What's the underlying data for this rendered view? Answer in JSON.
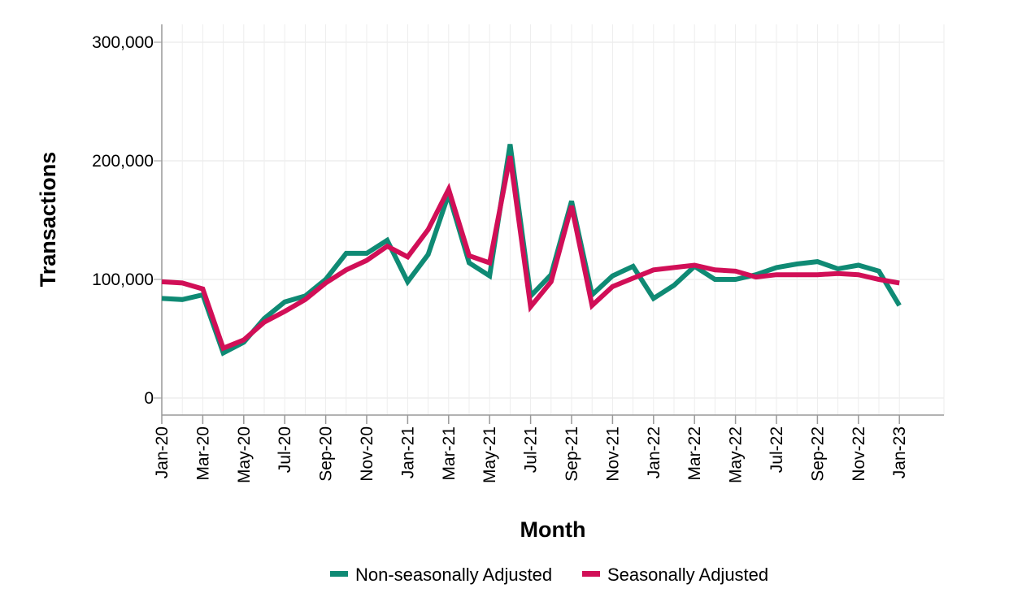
{
  "chart_data": {
    "type": "line",
    "title": "",
    "xlabel": "Month",
    "ylabel": "Transactions",
    "ylim": [
      0,
      300000
    ],
    "yticks": [
      0,
      100000,
      200000,
      300000
    ],
    "ytick_labels": [
      "0",
      "100,000",
      "200,000",
      "300,000"
    ],
    "grid": true,
    "legend_position": "bottom-center",
    "x": [
      "Jan-20",
      "Feb-20",
      "Mar-20",
      "Apr-20",
      "May-20",
      "Jun-20",
      "Jul-20",
      "Aug-20",
      "Sep-20",
      "Oct-20",
      "Nov-20",
      "Dec-20",
      "Jan-21",
      "Feb-21",
      "Mar-21",
      "Apr-21",
      "May-21",
      "Jun-21",
      "Jul-21",
      "Aug-21",
      "Sep-21",
      "Oct-21",
      "Nov-21",
      "Dec-21",
      "Jan-22",
      "Feb-22",
      "Mar-22",
      "Apr-22",
      "May-22",
      "Jun-22",
      "Jul-22",
      "Aug-22",
      "Sep-22",
      "Oct-22",
      "Nov-22",
      "Dec-22",
      "Jan-23"
    ],
    "xtick_labels": [
      "Jan-20",
      "Mar-20",
      "May-20",
      "Jul-20",
      "Sep-20",
      "Nov-20",
      "Jan-21",
      "Mar-21",
      "May-21",
      "Jul-21",
      "Sep-21",
      "Nov-21",
      "Jan-22",
      "Mar-22",
      "May-22",
      "Jul-22",
      "Sep-22",
      "Nov-22",
      "Jan-23"
    ],
    "series": [
      {
        "name": "Non-seasonally Adjusted",
        "color": "#0f8a74",
        "values": [
          84000,
          83000,
          87000,
          38000,
          47000,
          67000,
          81000,
          86000,
          100000,
          122000,
          122000,
          133000,
          98000,
          121000,
          172000,
          114000,
          103000,
          214000,
          86000,
          104000,
          166000,
          87000,
          103000,
          111000,
          84000,
          95000,
          111000,
          100000,
          100000,
          104000,
          110000,
          113000,
          115000,
          109000,
          112000,
          107000,
          78000
        ]
      },
      {
        "name": "Seasonally Adjusted",
        "color": "#d10f57",
        "values": [
          98000,
          97000,
          92000,
          42000,
          49000,
          64000,
          73000,
          83000,
          97000,
          108000,
          116000,
          128000,
          119000,
          142000,
          176000,
          120000,
          114000,
          204000,
          77000,
          98000,
          162000,
          78000,
          94000,
          101000,
          108000,
          110000,
          112000,
          108000,
          107000,
          102000,
          104000,
          104000,
          104000,
          105000,
          104000,
          100000,
          97000
        ]
      }
    ]
  }
}
